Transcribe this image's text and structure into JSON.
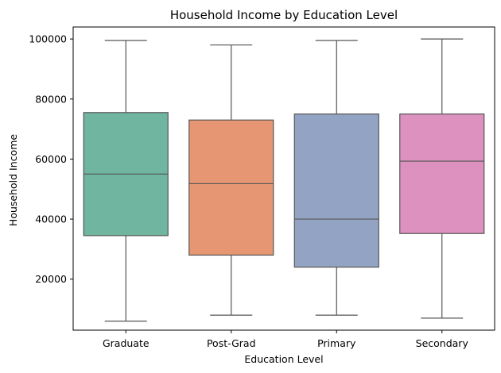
{
  "chart_data": {
    "type": "box",
    "title": "Household Income by Education Level",
    "xlabel": "Education Level",
    "ylabel": "Household Income",
    "ylim": [
      3000,
      104000
    ],
    "yticks": [
      20000,
      40000,
      60000,
      80000,
      100000
    ],
    "grid": false,
    "legend": "none",
    "categories": [
      "Graduate",
      "Post-Grad",
      "Primary",
      "Secondary"
    ],
    "series": [
      {
        "category": "Graduate",
        "min": 6000,
        "q1": 34500,
        "median": 55000,
        "q3": 75500,
        "max": 99500,
        "color": "#6fb59f"
      },
      {
        "category": "Post-Grad",
        "min": 8000,
        "q1": 28000,
        "median": 51800,
        "q3": 73000,
        "max": 98000,
        "color": "#e79673"
      },
      {
        "category": "Primary",
        "min": 8000,
        "q1": 24000,
        "median": 40000,
        "q3": 75000,
        "max": 99500,
        "color": "#92a3c4"
      },
      {
        "category": "Secondary",
        "min": 7000,
        "q1": 35200,
        "median": 59300,
        "q3": 75000,
        "max": 100000,
        "color": "#dc91bf"
      }
    ]
  }
}
